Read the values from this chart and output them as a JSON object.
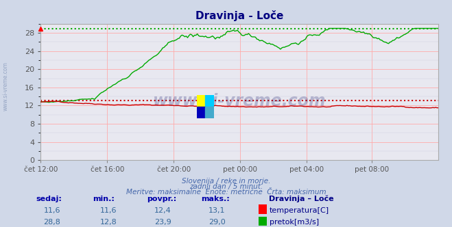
{
  "title": "Dravinja - Loče",
  "title_color": "#000080",
  "bg_color": "#d0d8e8",
  "plot_bg_color": "#e8e8f0",
  "grid_color_major": "#ffaaaa",
  "grid_color_minor": "#ccccdd",
  "x_tick_labels": [
    "čet 12:00",
    "čet 16:00",
    "čet 20:00",
    "pet 00:00",
    "pet 04:00",
    "pet 08:00"
  ],
  "x_tick_positions": [
    0,
    48,
    96,
    144,
    192,
    239
  ],
  "n_points": 288,
  "y_min": 0,
  "y_max": 30,
  "y_ticks": [
    0,
    4,
    8,
    12,
    16,
    20,
    24,
    28
  ],
  "temp_color": "#cc0000",
  "flow_color": "#00aa00",
  "temp_max_line": 13.1,
  "flow_max_line": 29.0,
  "temp_min": 11.6,
  "temp_max": 13.1,
  "temp_avg": 12.4,
  "temp_current": 11.6,
  "flow_min": 12.8,
  "flow_max": 29.0,
  "flow_avg": 23.9,
  "flow_current": 28.8,
  "subtitle1": "Slovenija / reke in morje.",
  "subtitle2": "zadnji dan / 5 minut.",
  "subtitle3": "Meritve: maksimalne  Enote: metrične  Črta: maksimum",
  "text_color": "#4466aa",
  "watermark": "www.si-vreme.com",
  "watermark_color": "#1a1a6e",
  "watermark_alpha": 0.25,
  "sidebar_text": "www.si-vreme.com",
  "sidebar_color": "#8899bb",
  "logo_colors": [
    "#ffff00",
    "#00ccff",
    "#0000bb",
    "#44aacc"
  ]
}
